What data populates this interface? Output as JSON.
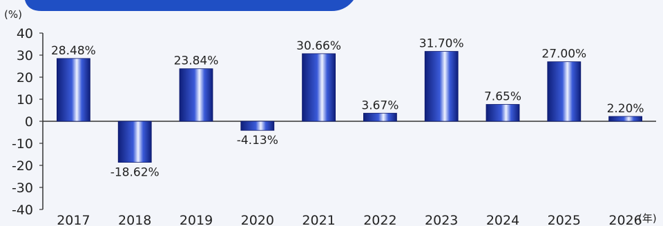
{
  "chart_data": {
    "type": "bar",
    "categories": [
      "2017",
      "2018",
      "2019",
      "2020",
      "2021",
      "2022",
      "2023",
      "2024",
      "2025",
      "2026"
    ],
    "values": [
      28.48,
      -18.62,
      23.84,
      -4.13,
      30.66,
      3.67,
      31.7,
      7.65,
      27.0,
      2.2
    ],
    "data_labels": [
      "28.48%",
      "-18.62%",
      "23.84%",
      "-4.13%",
      "30.66%",
      "3.67%",
      "31.70%",
      "7.65%",
      "27.00%",
      "2.20%"
    ],
    "y_unit": "(%)",
    "x_unit": "(年)",
    "ylim": [
      -40,
      40
    ],
    "yticks": [
      40,
      30,
      20,
      10,
      0,
      -10,
      -20,
      -30,
      -40
    ],
    "grid": false,
    "bar_color": "#1a35a8",
    "header_band_color": "#1f4fc4"
  }
}
